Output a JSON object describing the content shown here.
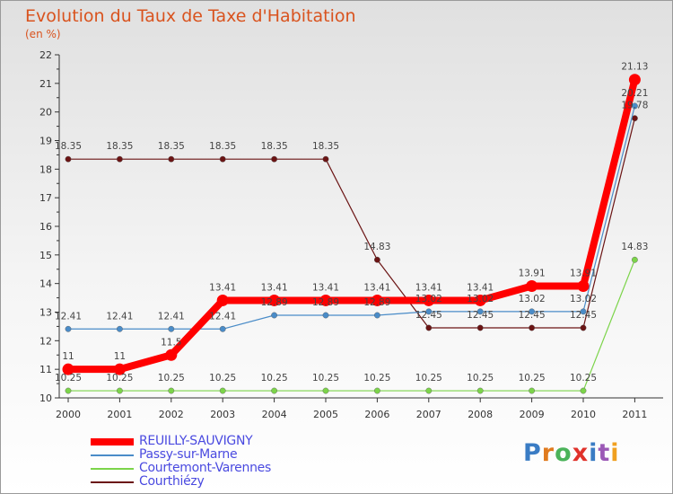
{
  "title": "Evolution du Taux de Taxe d'Habitation",
  "unit": "(en %)",
  "logo": {
    "text": "Proxiti",
    "letter_colors": [
      "#3a7cc4",
      "#e07b1f",
      "#4bb35a",
      "#e0322b",
      "#3a7cc4",
      "#9b59b6",
      "#f0a020"
    ]
  },
  "chart_data": {
    "type": "line",
    "title": "Evolution du Taux de Taxe d'Habitation",
    "ylabel": "(en %)",
    "xlabel": "",
    "ylim": [
      10,
      22
    ],
    "grid": false,
    "legend_position": "bottom-left",
    "categories": [
      "2000",
      "2001",
      "2002",
      "2003",
      "2004",
      "2005",
      "2006",
      "2007",
      "2008",
      "2009",
      "2010",
      "2011"
    ],
    "yticks": [
      "10",
      "11",
      "12",
      "13",
      "14",
      "15",
      "16",
      "17",
      "18",
      "19",
      "20",
      "21",
      "22"
    ],
    "series": [
      {
        "name": "REUILLY-SAUVIGNY",
        "color": "#ff0000",
        "values": [
          11,
          11,
          11.5,
          13.41,
          13.41,
          13.41,
          13.41,
          13.41,
          13.41,
          13.91,
          13.91,
          21.13
        ],
        "labels": [
          "11",
          "11",
          "11.5",
          "13.41",
          "13.41",
          "13.41",
          "13.41",
          "13.41",
          "13.41",
          "13.91",
          "13.91",
          "21.13"
        ]
      },
      {
        "name": "Passy-sur-Marne",
        "color": "#4a8cc8",
        "values": [
          12.41,
          12.41,
          12.41,
          12.41,
          12.89,
          12.89,
          12.89,
          13.02,
          13.02,
          13.02,
          13.02,
          20.21
        ],
        "labels": [
          "12.41",
          "12.41",
          "12.41",
          "12.41",
          "12.89",
          "12.89",
          "12.89",
          "13.02",
          "13.02",
          "13.02",
          "13.02",
          "20.21"
        ]
      },
      {
        "name": "Courtemont-Varennes",
        "color": "#7cd44a",
        "values": [
          10.25,
          10.25,
          10.25,
          10.25,
          10.25,
          10.25,
          10.25,
          10.25,
          10.25,
          10.25,
          10.25,
          14.83
        ],
        "labels": [
          "10.25",
          "10.25",
          "10.25",
          "10.25",
          "10.25",
          "10.25",
          "10.25",
          "10.25",
          "10.25",
          "10.25",
          "10.25",
          "14.83"
        ]
      },
      {
        "name": "Courthiézy",
        "color": "#6b1414",
        "values": [
          18.35,
          18.35,
          18.35,
          18.35,
          18.35,
          18.35,
          14.83,
          12.45,
          12.45,
          12.45,
          12.45,
          19.78
        ],
        "labels": [
          "18.35",
          "18.35",
          "18.35",
          "18.35",
          "18.35",
          "18.35",
          "14.83",
          "12.45",
          "12.45",
          "12.45",
          "12.45",
          "19.78"
        ]
      }
    ]
  }
}
